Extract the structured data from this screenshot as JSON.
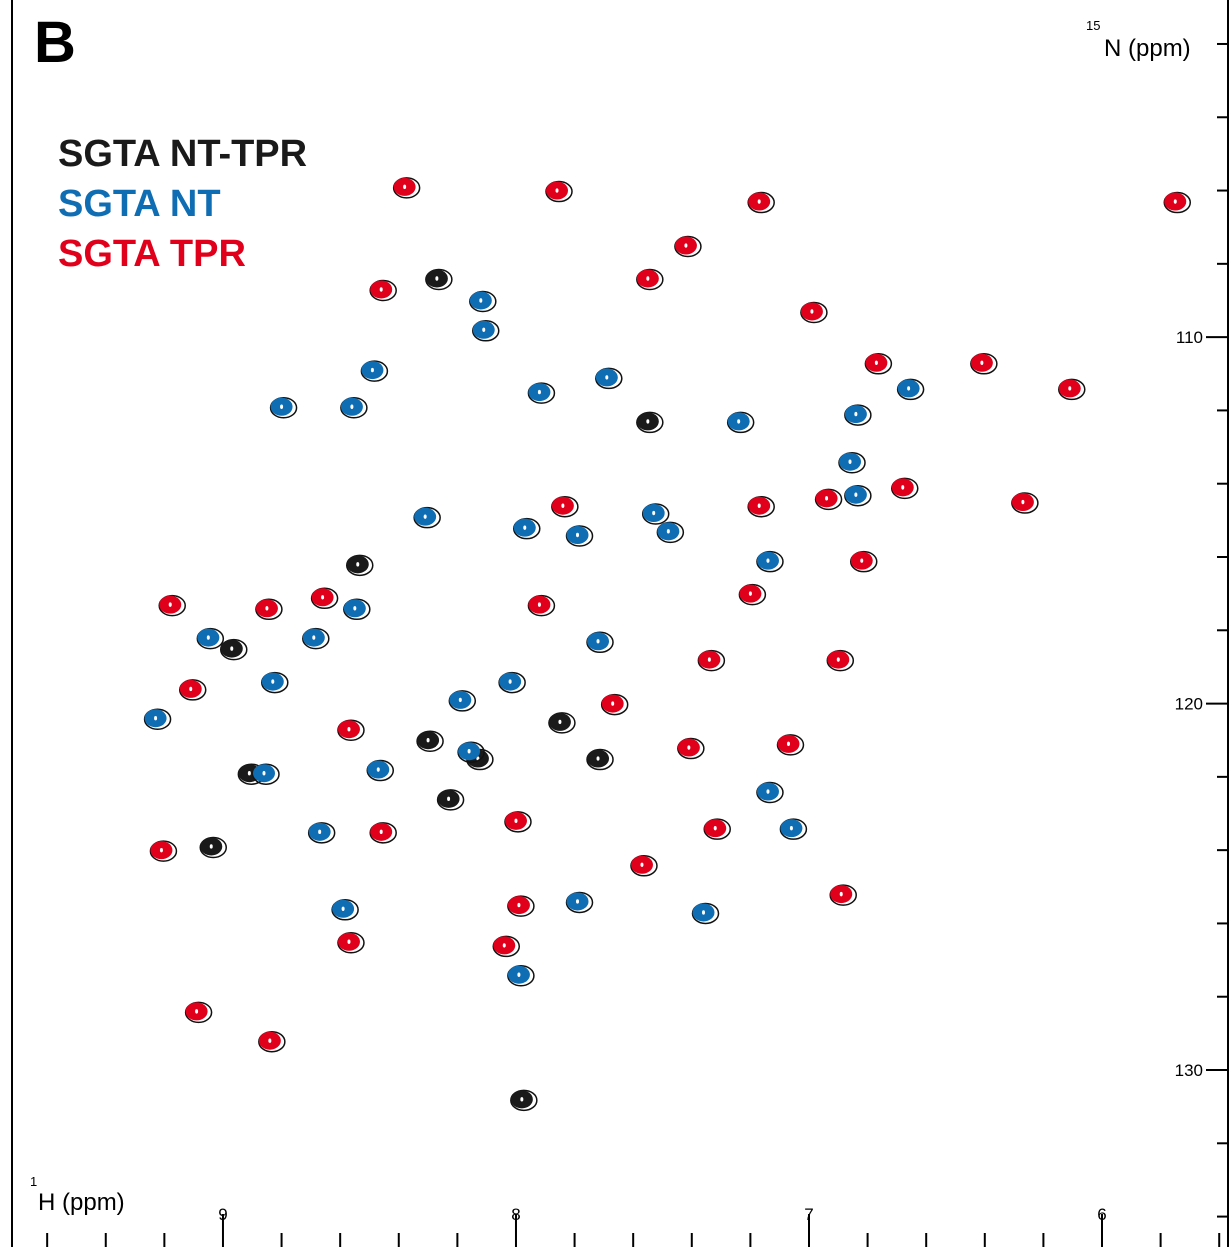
{
  "chart_data": {
    "type": "scatter",
    "panel_label": "B",
    "xlabel_sup": "1",
    "xlabel": "H (ppm)",
    "ylabel_sup": "15",
    "ylabel": "N (ppm)",
    "xlim": [
      9.72,
      5.57
    ],
    "ylim": [
      100.8,
      134.83
    ],
    "xticks": [
      9,
      8,
      7,
      6
    ],
    "xminorticks": [
      9.6,
      9.4,
      9.2,
      8.8,
      8.6,
      8.4,
      8.2,
      7.8,
      7.6,
      7.4,
      7.2,
      6.8,
      6.6,
      6.4,
      6.2,
      5.8,
      5.6
    ],
    "yticks": [
      110,
      120,
      130
    ],
    "yminorticks": [
      102,
      104,
      106,
      108,
      112,
      114,
      116,
      118,
      122,
      124,
      126,
      128,
      132,
      134
    ],
    "series": [
      {
        "name": "SGTA NT-TPR",
        "color": "#1a1a1a",
        "x": [
          8.27,
          9.04,
          8.97,
          7.98,
          8.54,
          8.3,
          7.85,
          7.72,
          8.23,
          7.55,
          8.91,
          8.13
        ],
        "values": [
          108.4,
          123.9,
          118.5,
          130.8,
          116.2,
          121.0,
          120.5,
          121.5,
          122.6,
          112.3,
          121.9,
          121.5
        ]
      },
      {
        "name": "SGTA NT",
        "color": "#0f6db3",
        "x": [
          8.12,
          8.11,
          8.49,
          8.8,
          8.56,
          7.92,
          7.69,
          8.31,
          7.97,
          7.79,
          7.48,
          7.14,
          8.55,
          9.05,
          8.69,
          8.83,
          9.23,
          7.72,
          6.66,
          6.84,
          6.86,
          6.84,
          7.24,
          7.53,
          7.14,
          7.06,
          7.36,
          7.79,
          7.99,
          8.59,
          8.86,
          8.67,
          8.19,
          8.02,
          8.16,
          8.47
        ],
        "values": [
          109.0,
          109.8,
          110.9,
          111.9,
          111.9,
          111.5,
          111.1,
          114.9,
          115.2,
          115.4,
          115.3,
          116.1,
          117.4,
          118.2,
          118.2,
          119.4,
          120.4,
          118.3,
          111.4,
          112.1,
          113.4,
          114.3,
          112.3,
          114.8,
          122.4,
          123.4,
          125.7,
          125.4,
          127.4,
          125.6,
          121.9,
          123.5,
          119.9,
          119.4,
          121.3,
          121.8
        ]
      },
      {
        "name": "SGTA TPR",
        "color": "#e0001b",
        "x": [
          8.38,
          7.86,
          7.17,
          7.42,
          7.55,
          8.46,
          6.99,
          5.75,
          6.41,
          6.11,
          6.27,
          6.68,
          7.17,
          7.84,
          6.82,
          8.85,
          9.18,
          8.66,
          7.92,
          9.11,
          9.21,
          8.84,
          9.09,
          8.57,
          8.04,
          7.99,
          6.89,
          7.32,
          7.57,
          7.07,
          7.41,
          7.67,
          7.34,
          8.0,
          8.46,
          8.57,
          6.9,
          7.2,
          6.77,
          6.94
        ],
        "values": [
          105.9,
          106.0,
          106.3,
          107.5,
          108.4,
          108.7,
          109.3,
          106.3,
          110.7,
          111.4,
          114.5,
          114.1,
          114.6,
          114.6,
          116.1,
          117.4,
          117.3,
          117.1,
          117.3,
          119.6,
          124.0,
          129.2,
          128.4,
          126.5,
          126.6,
          125.5,
          125.2,
          123.4,
          124.4,
          121.1,
          121.2,
          120.0,
          118.8,
          123.2,
          123.5,
          120.7,
          118.8,
          117.0,
          110.7,
          114.4
        ]
      }
    ]
  }
}
